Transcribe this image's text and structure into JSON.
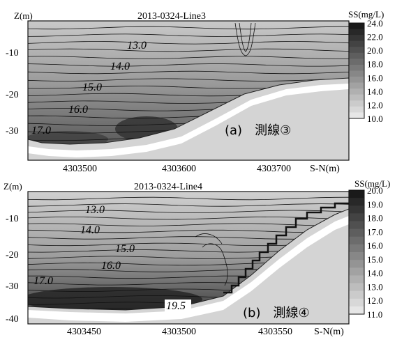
{
  "chart_data": [
    {
      "type": "contour",
      "title": "2013-0324-Line3",
      "xlabel": "S-N(m)",
      "ylabel": "Z(m)",
      "colorbar_label": "SS(mg/L)",
      "colorbar_ticks": [
        "24.0",
        "22.0",
        "20.0",
        "18.0",
        "16.0",
        "14.0",
        "12.0",
        "10.0"
      ],
      "x_ticks": [
        "4303500",
        "4303600",
        "4303700"
      ],
      "y_ticks": [
        "-10",
        "-20",
        "-30"
      ],
      "contour_labels": [
        "13.0",
        "14.0",
        "15.0",
        "16.0",
        "17.0"
      ],
      "panel_label": "(a)　測線③"
    },
    {
      "type": "contour",
      "title": "2013-0324-Line4",
      "xlabel": "S-N(m)",
      "ylabel": "Z(m)",
      "colorbar_label": "SS(mg/L)",
      "colorbar_ticks": [
        "20.0",
        "19.0",
        "18.0",
        "17.0",
        "16.0",
        "15.0",
        "14.0",
        "13.0",
        "12.0",
        "11.0"
      ],
      "x_ticks": [
        "4303450",
        "4303500",
        "4303550"
      ],
      "y_ticks": [
        "-10",
        "-20",
        "-30",
        "-40"
      ],
      "contour_labels": [
        "13.0",
        "14.0",
        "15.0",
        "16.0",
        "17.0",
        "19.5"
      ],
      "panel_label": "(b)　測線④"
    }
  ],
  "colors": {
    "dark": "#1a1a1a",
    "light": "#ececec",
    "seabed": "#d4d4d4"
  }
}
